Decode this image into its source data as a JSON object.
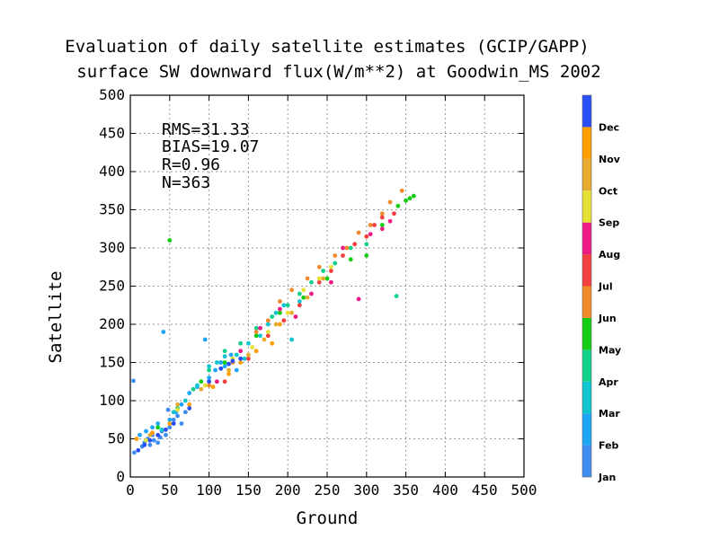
{
  "chart_data": {
    "type": "scatter",
    "title": [
      "Evaluation of daily satellite estimates (GCIP/GAPP)",
      "surface SW downward flux(W/m**2) at Goodwin_MS 2002"
    ],
    "xlabel": "Ground",
    "ylabel": "Satellite",
    "xlim": [
      0,
      500
    ],
    "ylim": [
      0,
      500
    ],
    "ticks": [
      0,
      50,
      100,
      150,
      200,
      250,
      300,
      350,
      400,
      450,
      500
    ],
    "grid": true,
    "stats": [
      "RMS=31.33",
      "BIAS=19.07",
      "R=0.96",
      "N=363"
    ],
    "legend": {
      "placement": "right",
      "type": "colorbar",
      "items": [
        {
          "label": "Jan",
          "color": "#3f8cf0"
        },
        {
          "label": "Feb",
          "color": "#1ea6f5"
        },
        {
          "label": "Mar",
          "color": "#0fc5cf"
        },
        {
          "label": "Apr",
          "color": "#12d28a"
        },
        {
          "label": "May",
          "color": "#14cc14"
        },
        {
          "label": "Jun",
          "color": "#f08a2a"
        },
        {
          "label": "Jul",
          "color": "#f24040"
        },
        {
          "label": "Aug",
          "color": "#ee1a86"
        },
        {
          "label": "Sep",
          "color": "#e6e235"
        },
        {
          "label": "Oct",
          "color": "#e6ac30"
        },
        {
          "label": "Nov",
          "color": "#ff9e00"
        },
        {
          "label": "Dec",
          "color": "#2a4ef5"
        }
      ]
    },
    "series": [
      {
        "name": "Jan",
        "points": [
          [
            5,
            32
          ],
          [
            4,
            126
          ],
          [
            15,
            40
          ],
          [
            18,
            45
          ],
          [
            22,
            50
          ],
          [
            25,
            42
          ],
          [
            28,
            55
          ],
          [
            30,
            48
          ],
          [
            35,
            45
          ],
          [
            38,
            52
          ],
          [
            40,
            60
          ],
          [
            45,
            55
          ],
          [
            50,
            65
          ],
          [
            55,
            75
          ],
          [
            48,
            88
          ],
          [
            60,
            80
          ],
          [
            65,
            70
          ],
          [
            70,
            85
          ]
        ]
      },
      {
        "name": "Feb",
        "points": [
          [
            12,
            55
          ],
          [
            20,
            60
          ],
          [
            28,
            65
          ],
          [
            35,
            70
          ],
          [
            42,
            190
          ],
          [
            50,
            75
          ],
          [
            58,
            85
          ],
          [
            65,
            95
          ],
          [
            75,
            110
          ],
          [
            85,
            118
          ],
          [
            95,
            180
          ],
          [
            100,
            130
          ],
          [
            108,
            140
          ],
          [
            115,
            150
          ],
          [
            120,
            145
          ],
          [
            128,
            160
          ],
          [
            135,
            140
          ]
        ]
      },
      {
        "name": "Mar",
        "points": [
          [
            40,
            62
          ],
          [
            55,
            85
          ],
          [
            70,
            100
          ],
          [
            85,
            120
          ],
          [
            100,
            145
          ],
          [
            110,
            150
          ],
          [
            120,
            158
          ],
          [
            135,
            160
          ],
          [
            145,
            155
          ],
          [
            150,
            175
          ],
          [
            165,
            185
          ],
          [
            175,
            200
          ],
          [
            185,
            215
          ],
          [
            195,
            225
          ],
          [
            205,
            180
          ],
          [
            215,
            230
          ]
        ]
      },
      {
        "name": "Apr",
        "points": [
          [
            60,
            90
          ],
          [
            80,
            115
          ],
          [
            100,
            140
          ],
          [
            120,
            165
          ],
          [
            140,
            175
          ],
          [
            160,
            195
          ],
          [
            180,
            210
          ],
          [
            200,
            225
          ],
          [
            215,
            240
          ],
          [
            230,
            255
          ],
          [
            245,
            270
          ],
          [
            260,
            280
          ],
          [
            280,
            300
          ],
          [
            300,
            305
          ],
          [
            338,
            237
          ]
        ]
      },
      {
        "name": "May",
        "points": [
          [
            35,
            65
          ],
          [
            50,
            310
          ],
          [
            90,
            125
          ],
          [
            120,
            150
          ],
          [
            160,
            185
          ],
          [
            190,
            215
          ],
          [
            220,
            235
          ],
          [
            250,
            260
          ],
          [
            280,
            285
          ],
          [
            300,
            290
          ],
          [
            320,
            330
          ],
          [
            340,
            355
          ],
          [
            350,
            362
          ],
          [
            355,
            365
          ],
          [
            360,
            368
          ]
        ]
      },
      {
        "name": "Jun",
        "points": [
          [
            100,
            120
          ],
          [
            130,
            150
          ],
          [
            160,
            190
          ],
          [
            175,
            205
          ],
          [
            190,
            230
          ],
          [
            205,
            245
          ],
          [
            225,
            260
          ],
          [
            240,
            275
          ],
          [
            260,
            290
          ],
          [
            275,
            300
          ],
          [
            290,
            320
          ],
          [
            305,
            330
          ],
          [
            320,
            345
          ],
          [
            330,
            360
          ],
          [
            345,
            375
          ]
        ]
      },
      {
        "name": "Jul",
        "points": [
          [
            120,
            125
          ],
          [
            150,
            155
          ],
          [
            175,
            185
          ],
          [
            195,
            205
          ],
          [
            215,
            225
          ],
          [
            240,
            255
          ],
          [
            255,
            270
          ],
          [
            270,
            290
          ],
          [
            285,
            305
          ],
          [
            300,
            315
          ],
          [
            310,
            330
          ],
          [
            320,
            340
          ],
          [
            335,
            345
          ]
        ]
      },
      {
        "name": "Aug",
        "points": [
          [
            110,
            125
          ],
          [
            140,
            165
          ],
          [
            165,
            195
          ],
          [
            190,
            220
          ],
          [
            210,
            210
          ],
          [
            230,
            240
          ],
          [
            255,
            255
          ],
          [
            270,
            300
          ],
          [
            290,
            233
          ],
          [
            305,
            318
          ],
          [
            320,
            325
          ],
          [
            330,
            335
          ]
        ]
      },
      {
        "name": "Sep",
        "points": [
          [
            20,
            48
          ],
          [
            60,
            88
          ],
          [
            95,
            120
          ],
          [
            130,
            155
          ],
          [
            155,
            170
          ],
          [
            175,
            190
          ],
          [
            200,
            215
          ],
          [
            220,
            245
          ],
          [
            240,
            260
          ],
          [
            255,
            275
          ]
        ]
      },
      {
        "name": "Oct",
        "points": [
          [
            25,
            55
          ],
          [
            60,
            95
          ],
          [
            90,
            115
          ],
          [
            125,
            140
          ],
          [
            150,
            160
          ],
          [
            170,
            180
          ],
          [
            185,
            200
          ],
          [
            205,
            215
          ],
          [
            225,
            235
          ],
          [
            245,
            260
          ]
        ]
      },
      {
        "name": "Nov",
        "points": [
          [
            8,
            50
          ],
          [
            28,
            58
          ],
          [
            50,
            70
          ],
          [
            75,
            95
          ],
          [
            105,
            118
          ],
          [
            125,
            135
          ],
          [
            140,
            150
          ],
          [
            160,
            165
          ],
          [
            180,
            175
          ],
          [
            190,
            200
          ]
        ]
      },
      {
        "name": "Dec",
        "points": [
          [
            10,
            35
          ],
          [
            18,
            42
          ],
          [
            25,
            48
          ],
          [
            35,
            55
          ],
          [
            45,
            62
          ],
          [
            55,
            70
          ],
          [
            75,
            90
          ],
          [
            100,
            125
          ],
          [
            115,
            142
          ],
          [
            125,
            148
          ],
          [
            130,
            152
          ],
          [
            140,
            155
          ]
        ]
      }
    ]
  }
}
